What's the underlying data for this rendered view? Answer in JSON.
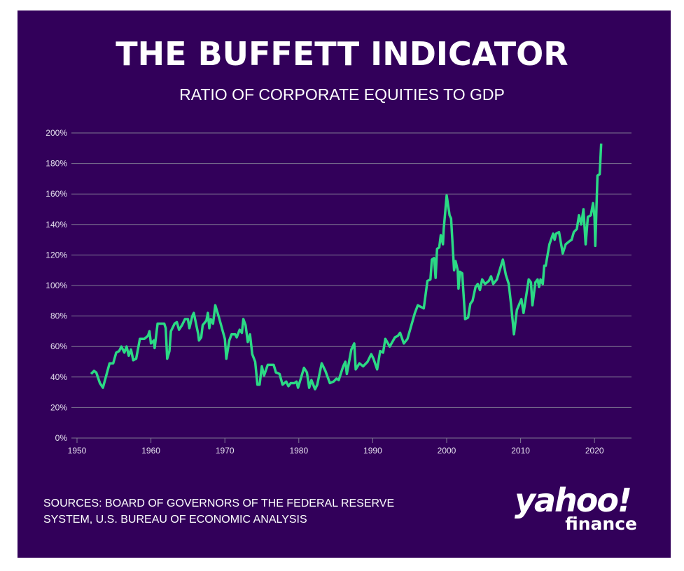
{
  "chart_data": {
    "type": "line",
    "title": "THE BUFFETT INDICATOR",
    "subtitle": "RATIO OF CORPORATE EQUITIES TO GDP",
    "xlabel": "",
    "ylabel": "",
    "xlim": [
      1950,
      2025
    ],
    "ylim": [
      0,
      200
    ],
    "grid": true,
    "x_ticks": [
      "1950",
      "1960",
      "1970",
      "1980",
      "1990",
      "2000",
      "2010",
      "2020"
    ],
    "y_ticks": [
      "0%",
      "20%",
      "40%",
      "60%",
      "80%",
      "100%",
      "120%",
      "140%",
      "160%",
      "180%",
      "200%"
    ],
    "line_color": "#2bd985",
    "series": [
      {
        "x": [
          1951.9,
          1952.3,
          1952.6,
          1953.1,
          1953.5,
          1954.4,
          1954.9,
          1955.3,
          1955.7,
          1956.0,
          1956.4,
          1956.7,
          1957.0,
          1957.3,
          1957.6,
          1958.0,
          1958.5,
          1959.1,
          1959.6,
          1959.8,
          1960.0,
          1960.4,
          1960.5,
          1960.9,
          1961.4,
          1961.8,
          1962.0,
          1962.2,
          1962.5,
          1962.7,
          1963.2,
          1963.5,
          1963.8,
          1964.2,
          1964.6,
          1965.0,
          1965.2,
          1965.6,
          1965.8,
          1966.4,
          1966.5,
          1966.8,
          1967.0,
          1967.5,
          1967.7,
          1967.9,
          1968.1,
          1968.4,
          1968.7,
          1969.2,
          1970.0,
          1970.2,
          1970.6,
          1970.9,
          1971.4,
          1971.6,
          1972.0,
          1972.3,
          1972.5,
          1972.8,
          1973.1,
          1973.4,
          1973.7,
          1974.1,
          1974.4,
          1974.7,
          1975.0,
          1975.3,
          1975.8,
          1976.6,
          1976.9,
          1977.4,
          1977.8,
          1978.3,
          1978.6,
          1978.9,
          1979.4,
          1979.7,
          1979.9,
          1980.7,
          1981.1,
          1981.4,
          1981.7,
          1982.2,
          1982.5,
          1983.1,
          1983.6,
          1984.2,
          1984.7,
          1985.1,
          1985.4,
          1985.6,
          1986.0,
          1986.3,
          1986.5,
          1987.1,
          1987.5,
          1987.7,
          1988.2,
          1988.7,
          1989.3,
          1989.8,
          1990.1,
          1990.6,
          1991.0,
          1991.4,
          1991.7,
          1992.3,
          1993.0,
          1993.4,
          1993.7,
          1994.2,
          1994.7,
          1995.7,
          1996.1,
          1996.9,
          1997.4,
          1997.8,
          1998.0,
          1998.3,
          1998.5,
          1998.7,
          1999.0,
          1999.2,
          1999.5,
          1999.6,
          2000.0,
          2000.4,
          2000.6,
          2001.0,
          2001.2,
          2001.5,
          2001.6,
          2001.8,
          2002.1,
          2002.5,
          2002.9,
          2003.2,
          2003.5,
          2003.9,
          2004.2,
          2004.5,
          2004.8,
          2005.2,
          2005.7,
          2006.0,
          2006.3,
          2006.8,
          2007.6,
          2008.0,
          2008.4,
          2008.7,
          2009.1,
          2009.5,
          2010.1,
          2010.4,
          2011.1,
          2011.4,
          2011.6,
          2012.0,
          2012.3,
          2012.5,
          2012.7,
          2013.0,
          2013.2,
          2013.4,
          2013.9,
          2014.4,
          2014.6,
          2014.8,
          2015.2,
          2015.7,
          2016.1,
          2016.6,
          2016.9,
          2017.2,
          2017.6,
          2017.9,
          2018.2,
          2018.5,
          2018.8,
          2019.1,
          2019.5,
          2019.8,
          2020.0,
          2020.1,
          2020.4,
          2020.7,
          2020.9
        ],
        "y": [
          42,
          44,
          43,
          36,
          33,
          49,
          49,
          56,
          57,
          60,
          56,
          60,
          54,
          58,
          51,
          52,
          65,
          65,
          67,
          70,
          62,
          64,
          59,
          75,
          75,
          75,
          72,
          52,
          57,
          70,
          75,
          76,
          71,
          74,
          78,
          78,
          72,
          80,
          82,
          68,
          64,
          66,
          74,
          77,
          82,
          72,
          78,
          75,
          87,
          79,
          65,
          52,
          64,
          68,
          68,
          66,
          71,
          69,
          78,
          74,
          63,
          68,
          55,
          50,
          35,
          35,
          47,
          41,
          48,
          48,
          43,
          42,
          35,
          37,
          34,
          36,
          36,
          37,
          33,
          46,
          43,
          33,
          38,
          32,
          35,
          49,
          44,
          36,
          37,
          39,
          38,
          41,
          47,
          50,
          42,
          58,
          62,
          45,
          49,
          47,
          50,
          55,
          52,
          45,
          57,
          56,
          65,
          60,
          66,
          67,
          69,
          62,
          65,
          82,
          87,
          85,
          103,
          104,
          117,
          118,
          105,
          124,
          125,
          133,
          127,
          137,
          159,
          146,
          144,
          110,
          116,
          110,
          98,
          109,
          108,
          78,
          79,
          88,
          90,
          99,
          101,
          97,
          104,
          101,
          103,
          106,
          101,
          104,
          117,
          107,
          101,
          88,
          68,
          84,
          91,
          82,
          104,
          102,
          87,
          102,
          104,
          99,
          104,
          101,
          113,
          113,
          127,
          134,
          130,
          134,
          135,
          121,
          127,
          129,
          130,
          135,
          137,
          146,
          140,
          150,
          127,
          145,
          146,
          154,
          145,
          126,
          172,
          173,
          193
        ]
      }
    ]
  },
  "sources": {
    "line1": "SOURCES: BOARD OF GOVERNORS OF THE FEDERAL RESERVE",
    "line2": "SYSTEM, U.S. BUREAU OF ECONOMIC ANALYSIS"
  },
  "logo": {
    "word1": "yahoo!",
    "word2": "finance"
  }
}
